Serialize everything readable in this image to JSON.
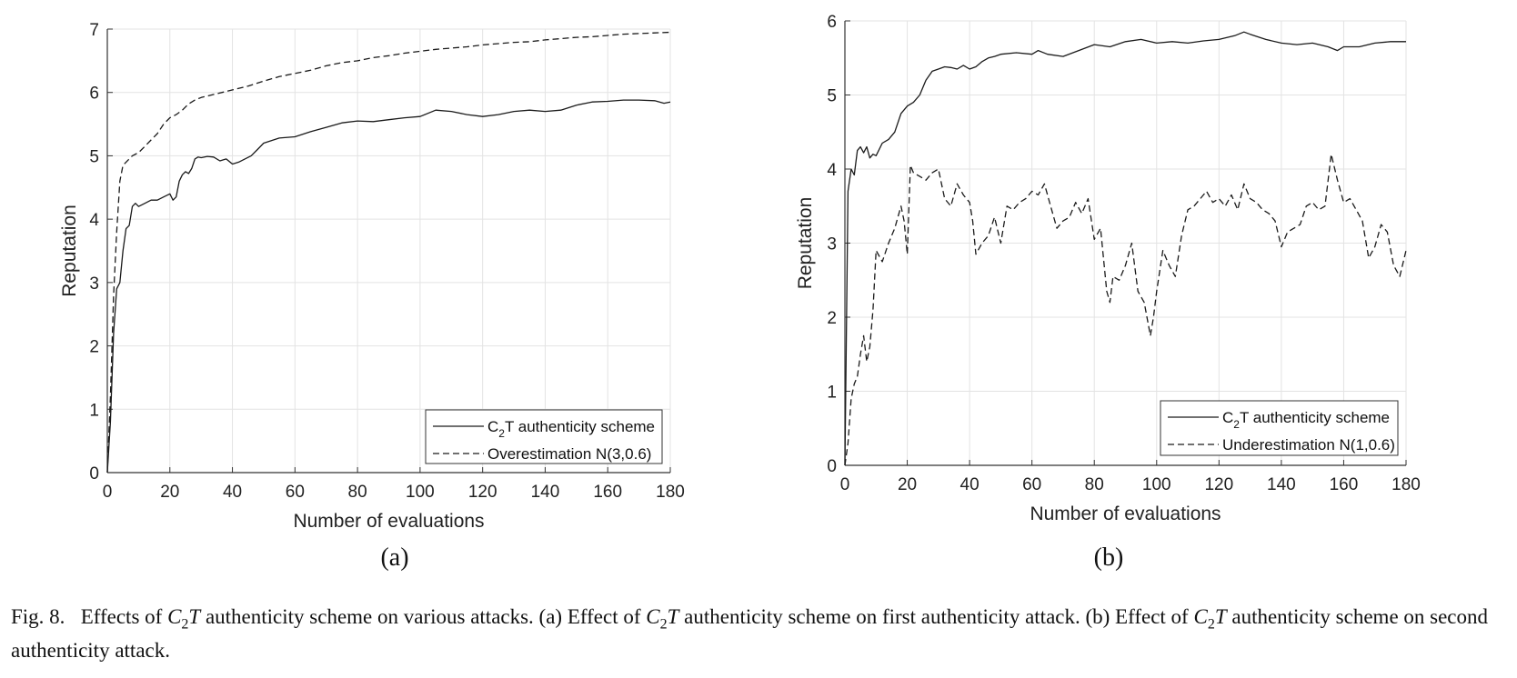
{
  "caption": {
    "fig_label": "Fig. 8.",
    "s1": "Effects of",
    "s2": "authenticity scheme on various attacks. (a) Effect of",
    "s3": "authenticity scheme on first authenticity attack. (b) Effect of",
    "s4": "authenticity scheme on second authenticity attack.",
    "sym_base": "C",
    "sym_sub": "2",
    "sym_tail": "T"
  },
  "chart_data": [
    {
      "type": "line",
      "panel_label": "(a)",
      "xlabel": "Number of evaluations",
      "ylabel": "Reputation",
      "xlim": [
        0,
        180
      ],
      "ylim": [
        0,
        7
      ],
      "xticks": [
        0,
        20,
        40,
        60,
        80,
        100,
        120,
        140,
        160,
        180
      ],
      "yticks": [
        0,
        1,
        2,
        3,
        4,
        5,
        6,
        7
      ],
      "grid": true,
      "legend_position": "bottom-right",
      "series": [
        {
          "name": "C2T authenticity scheme",
          "legend_base": "C",
          "legend_sub": "2",
          "legend_tail": "T authenticity scheme",
          "style": "solid",
          "x": [
            0,
            1,
            2,
            3,
            4,
            5,
            6,
            7,
            8,
            9,
            10,
            12,
            14,
            16,
            18,
            20,
            21,
            22,
            23,
            24,
            25,
            26,
            27,
            28,
            29,
            30,
            32,
            34,
            36,
            38,
            40,
            42,
            44,
            46,
            48,
            50,
            55,
            60,
            65,
            70,
            75,
            80,
            85,
            90,
            95,
            100,
            105,
            110,
            115,
            120,
            125,
            130,
            135,
            140,
            145,
            150,
            155,
            160,
            165,
            170,
            175,
            178,
            180
          ],
          "values": [
            0,
            0.8,
            2.2,
            2.9,
            3.0,
            3.5,
            3.85,
            3.9,
            4.2,
            4.25,
            4.2,
            4.25,
            4.3,
            4.3,
            4.35,
            4.4,
            4.3,
            4.35,
            4.6,
            4.7,
            4.75,
            4.72,
            4.8,
            4.95,
            4.98,
            4.97,
            4.99,
            4.98,
            4.92,
            4.95,
            4.87,
            4.9,
            4.95,
            5.0,
            5.1,
            5.2,
            5.28,
            5.3,
            5.38,
            5.45,
            5.52,
            5.55,
            5.54,
            5.57,
            5.6,
            5.62,
            5.72,
            5.7,
            5.65,
            5.62,
            5.65,
            5.7,
            5.72,
            5.7,
            5.72,
            5.8,
            5.85,
            5.86,
            5.88,
            5.88,
            5.87,
            5.83,
            5.85
          ]
        },
        {
          "name": "Overestimation N(3,0.6)",
          "legend_text": "Overestimation N(3,0.6)",
          "style": "dashed",
          "x": [
            0,
            1,
            2,
            3,
            4,
            5,
            6,
            8,
            10,
            12,
            14,
            16,
            18,
            20,
            22,
            24,
            26,
            28,
            30,
            35,
            40,
            45,
            50,
            55,
            60,
            65,
            70,
            75,
            80,
            85,
            90,
            95,
            100,
            105,
            110,
            115,
            120,
            125,
            130,
            135,
            140,
            145,
            150,
            155,
            160,
            165,
            170,
            175,
            180
          ],
          "values": [
            0,
            1.2,
            2.8,
            3.8,
            4.6,
            4.85,
            4.9,
            5.0,
            5.05,
            5.15,
            5.25,
            5.35,
            5.5,
            5.6,
            5.65,
            5.72,
            5.82,
            5.88,
            5.92,
            5.98,
            6.04,
            6.1,
            6.18,
            6.25,
            6.3,
            6.35,
            6.42,
            6.47,
            6.5,
            6.55,
            6.58,
            6.62,
            6.65,
            6.68,
            6.7,
            6.72,
            6.75,
            6.77,
            6.79,
            6.8,
            6.83,
            6.85,
            6.87,
            6.88,
            6.9,
            6.92,
            6.93,
            6.94,
            6.95
          ]
        }
      ]
    },
    {
      "type": "line",
      "panel_label": "(b)",
      "xlabel": "Number of evaluations",
      "ylabel": "Reputation",
      "xlim": [
        0,
        180
      ],
      "ylim": [
        0,
        6
      ],
      "xticks": [
        0,
        20,
        40,
        60,
        80,
        100,
        120,
        140,
        160,
        180
      ],
      "yticks": [
        0,
        1,
        2,
        3,
        4,
        5,
        6
      ],
      "grid": true,
      "legend_position": "bottom-right",
      "series": [
        {
          "name": "C2T authenticity scheme",
          "legend_base": "C",
          "legend_sub": "2",
          "legend_tail": "T authenticity scheme",
          "style": "solid",
          "x": [
            0,
            1,
            2,
            3,
            4,
            5,
            6,
            7,
            8,
            9,
            10,
            12,
            14,
            16,
            18,
            20,
            22,
            24,
            26,
            28,
            30,
            32,
            34,
            36,
            38,
            40,
            42,
            44,
            46,
            48,
            50,
            55,
            60,
            62,
            65,
            70,
            75,
            80,
            85,
            90,
            95,
            100,
            105,
            110,
            115,
            120,
            125,
            128,
            130,
            135,
            140,
            145,
            150,
            155,
            158,
            160,
            165,
            170,
            175,
            180
          ],
          "values": [
            0,
            3.7,
            4.0,
            3.92,
            4.25,
            4.3,
            4.22,
            4.3,
            4.15,
            4.2,
            4.18,
            4.35,
            4.4,
            4.5,
            4.75,
            4.85,
            4.9,
            5.0,
            5.2,
            5.32,
            5.35,
            5.38,
            5.37,
            5.35,
            5.4,
            5.35,
            5.38,
            5.45,
            5.5,
            5.52,
            5.55,
            5.57,
            5.55,
            5.6,
            5.55,
            5.52,
            5.6,
            5.68,
            5.65,
            5.72,
            5.75,
            5.7,
            5.72,
            5.7,
            5.73,
            5.75,
            5.8,
            5.85,
            5.82,
            5.75,
            5.7,
            5.68,
            5.7,
            5.65,
            5.6,
            5.65,
            5.65,
            5.7,
            5.72,
            5.72
          ]
        },
        {
          "name": "Underestimation N(1,0.6)",
          "legend_text": "Underestimation N(1,0.6)",
          "style": "dashed",
          "x": [
            0,
            1,
            2,
            3,
            4,
            5,
            6,
            7,
            8,
            9,
            10,
            12,
            14,
            16,
            18,
            19,
            20,
            21,
            22,
            24,
            26,
            28,
            30,
            32,
            34,
            36,
            38,
            40,
            41,
            42,
            44,
            46,
            48,
            50,
            52,
            54,
            56,
            58,
            60,
            62,
            64,
            66,
            68,
            70,
            72,
            74,
            76,
            78,
            80,
            82,
            84,
            85,
            86,
            88,
            90,
            92,
            94,
            96,
            98,
            99,
            100,
            102,
            104,
            106,
            108,
            110,
            112,
            114,
            116,
            118,
            120,
            122,
            124,
            126,
            128,
            130,
            132,
            134,
            136,
            138,
            140,
            142,
            144,
            146,
            148,
            150,
            152,
            154,
            156,
            158,
            160,
            162,
            164,
            166,
            168,
            170,
            172,
            174,
            176,
            178,
            180
          ],
          "values": [
            0,
            0.3,
            0.9,
            1.1,
            1.2,
            1.5,
            1.75,
            1.4,
            1.6,
            2.1,
            2.9,
            2.75,
            3.0,
            3.2,
            3.5,
            3.3,
            2.85,
            4.05,
            3.95,
            3.9,
            3.85,
            3.95,
            4.0,
            3.6,
            3.5,
            3.8,
            3.65,
            3.55,
            3.3,
            2.85,
            3.0,
            3.1,
            3.35,
            3.0,
            3.5,
            3.45,
            3.55,
            3.6,
            3.7,
            3.65,
            3.8,
            3.5,
            3.2,
            3.3,
            3.35,
            3.55,
            3.4,
            3.6,
            3.05,
            3.2,
            2.35,
            2.2,
            2.55,
            2.5,
            2.7,
            3.0,
            2.35,
            2.2,
            1.75,
            2.0,
            2.35,
            2.9,
            2.7,
            2.55,
            3.1,
            3.45,
            3.5,
            3.6,
            3.7,
            3.55,
            3.6,
            3.5,
            3.65,
            3.45,
            3.8,
            3.6,
            3.55,
            3.45,
            3.4,
            3.3,
            2.95,
            3.15,
            3.2,
            3.25,
            3.5,
            3.55,
            3.45,
            3.5,
            4.2,
            3.85,
            3.55,
            3.6,
            3.45,
            3.3,
            2.8,
            2.95,
            3.25,
            3.15,
            2.7,
            2.55,
            2.9
          ]
        }
      ]
    }
  ]
}
